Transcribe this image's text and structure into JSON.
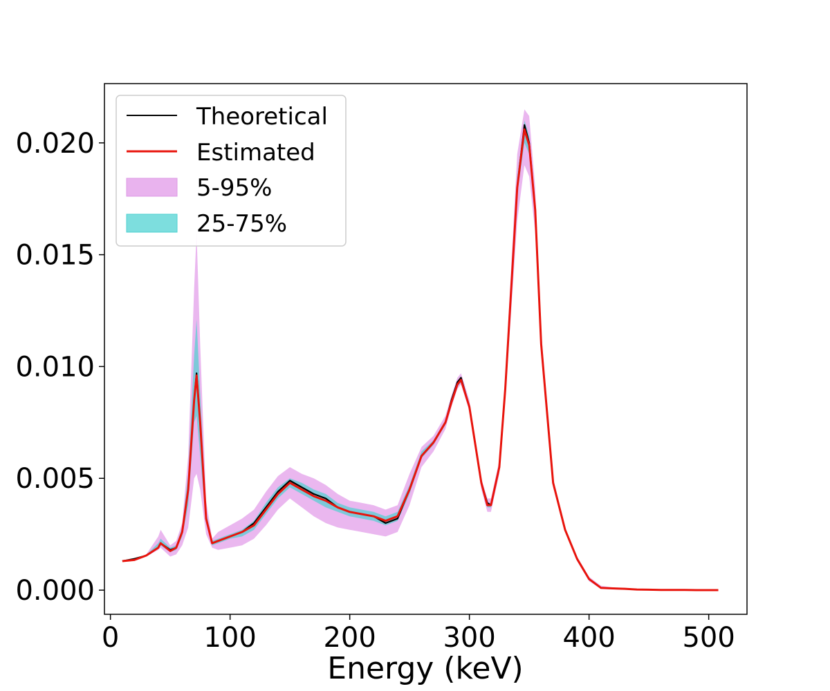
{
  "chart_data": {
    "type": "line",
    "title": "",
    "xlabel": "Energy (keV)",
    "ylabel": "",
    "xlim": [
      -5,
      532
    ],
    "ylim": [
      -0.00108,
      0.02265
    ],
    "xticks": [
      0,
      100,
      200,
      300,
      400,
      500
    ],
    "xtick_labels": [
      "0",
      "100",
      "200",
      "300",
      "400",
      "500"
    ],
    "yticks": [
      0.0,
      0.005,
      0.01,
      0.015,
      0.02
    ],
    "ytick_labels": [
      "0.000",
      "0.005",
      "0.010",
      "0.015",
      "0.020"
    ],
    "grid": false,
    "legend_position": "top-left",
    "x": [
      10,
      20,
      30,
      40,
      42,
      50,
      55,
      60,
      65,
      70,
      72,
      75,
      80,
      85,
      90,
      100,
      110,
      120,
      130,
      140,
      150,
      160,
      170,
      180,
      190,
      200,
      210,
      220,
      230,
      240,
      250,
      260,
      270,
      280,
      285,
      290,
      293,
      300,
      310,
      315,
      318,
      325,
      330,
      340,
      346,
      350,
      355,
      360,
      370,
      380,
      390,
      400,
      410,
      420,
      430,
      440,
      450,
      460,
      470,
      480,
      490,
      500,
      508
    ],
    "series": [
      {
        "name": "Theoretical",
        "color": "#000000",
        "kind": "line",
        "values": [
          0.0013,
          0.0014,
          0.00155,
          0.0019,
          0.0021,
          0.0018,
          0.0019,
          0.0026,
          0.0045,
          0.0085,
          0.0097,
          0.0075,
          0.0032,
          0.0021,
          0.0022,
          0.0024,
          0.0026,
          0.003,
          0.0037,
          0.0044,
          0.0049,
          0.0046,
          0.0043,
          0.0041,
          0.0037,
          0.0035,
          0.0034,
          0.0033,
          0.003,
          0.0032,
          0.0045,
          0.006,
          0.0066,
          0.0075,
          0.0085,
          0.0093,
          0.0095,
          0.0082,
          0.0048,
          0.0039,
          0.0038,
          0.0055,
          0.009,
          0.018,
          0.0208,
          0.02,
          0.017,
          0.011,
          0.0048,
          0.0027,
          0.0014,
          0.0005,
          0.0001,
          8e-05,
          6e-05,
          3e-05,
          2e-05,
          1e-05,
          1e-05,
          1e-05,
          0.0,
          0.0,
          0.0
        ]
      },
      {
        "name": "Estimated",
        "color": "#e8140c",
        "kind": "line",
        "values": [
          0.0013,
          0.00135,
          0.00155,
          0.0019,
          0.0021,
          0.00175,
          0.0019,
          0.0026,
          0.0045,
          0.0085,
          0.0096,
          0.0075,
          0.0032,
          0.0021,
          0.0022,
          0.0024,
          0.0026,
          0.0029,
          0.0036,
          0.0043,
          0.0048,
          0.0045,
          0.0042,
          0.004,
          0.0037,
          0.0035,
          0.0034,
          0.0033,
          0.0031,
          0.0033,
          0.0045,
          0.006,
          0.0066,
          0.0075,
          0.0084,
          0.0092,
          0.0094,
          0.0082,
          0.0048,
          0.0038,
          0.0038,
          0.0055,
          0.009,
          0.018,
          0.0206,
          0.0199,
          0.017,
          0.011,
          0.0048,
          0.0027,
          0.0014,
          0.0005,
          0.0001,
          8e-05,
          6e-05,
          3e-05,
          2e-05,
          1e-05,
          1e-05,
          1e-05,
          0.0,
          0.0,
          0.0
        ]
      },
      {
        "name": "5-95%",
        "color": "#e9b3ee",
        "kind": "band",
        "lower": [
          0.0013,
          0.0013,
          0.0015,
          0.0018,
          0.0019,
          0.0015,
          0.0016,
          0.002,
          0.0028,
          0.005,
          0.0052,
          0.0045,
          0.0025,
          0.0019,
          0.0018,
          0.0019,
          0.002,
          0.0023,
          0.0029,
          0.0036,
          0.0041,
          0.0037,
          0.0033,
          0.003,
          0.0028,
          0.0027,
          0.0026,
          0.0025,
          0.0024,
          0.0026,
          0.0038,
          0.0055,
          0.0062,
          0.0072,
          0.0082,
          0.009,
          0.0092,
          0.008,
          0.0045,
          0.0035,
          0.0035,
          0.0052,
          0.0085,
          0.0165,
          0.019,
          0.0185,
          0.016,
          0.0105,
          0.0046,
          0.0026,
          0.0013,
          0.0004,
          5e-05,
          3e-05,
          2e-05,
          1e-05,
          0.0,
          0.0,
          0.0,
          0.0,
          0.0,
          0.0,
          0.0
        ],
        "upper": [
          0.0013,
          0.0014,
          0.0016,
          0.0024,
          0.0027,
          0.002,
          0.0022,
          0.003,
          0.006,
          0.0135,
          0.016,
          0.011,
          0.004,
          0.0023,
          0.0026,
          0.0029,
          0.0032,
          0.0036,
          0.0044,
          0.0051,
          0.0055,
          0.0052,
          0.005,
          0.0047,
          0.0043,
          0.004,
          0.0039,
          0.0038,
          0.0036,
          0.0038,
          0.0052,
          0.0064,
          0.0069,
          0.0078,
          0.0087,
          0.0095,
          0.0097,
          0.0085,
          0.005,
          0.0041,
          0.0041,
          0.0058,
          0.0095,
          0.0195,
          0.0215,
          0.0212,
          0.018,
          0.0116,
          0.005,
          0.0028,
          0.0015,
          0.0006,
          0.0002,
          0.00012,
          0.0001,
          6e-05,
          4e-05,
          3e-05,
          2e-05,
          2e-05,
          1e-05,
          1e-05,
          0.0
        ]
      },
      {
        "name": "25-75%",
        "color": "#4fd0d0",
        "kind": "band",
        "lower": [
          0.0013,
          0.00135,
          0.00152,
          0.0019,
          0.002,
          0.0017,
          0.0018,
          0.0024,
          0.0038,
          0.0075,
          0.0078,
          0.006,
          0.003,
          0.002,
          0.0021,
          0.0023,
          0.0024,
          0.0027,
          0.0034,
          0.0041,
          0.0046,
          0.0043,
          0.004,
          0.0037,
          0.0035,
          0.0033,
          0.0032,
          0.0031,
          0.0029,
          0.0031,
          0.0043,
          0.0059,
          0.0065,
          0.0074,
          0.0083,
          0.0091,
          0.0093,
          0.0081,
          0.0047,
          0.0037,
          0.0037,
          0.0054,
          0.0088,
          0.0177,
          0.02,
          0.0195,
          0.0167,
          0.0109,
          0.0047,
          0.0027,
          0.0014,
          0.0005,
          8e-05,
          6e-05,
          4e-05,
          2e-05,
          1e-05,
          1e-05,
          0.0,
          0.0,
          0.0,
          0.0,
          0.0
        ],
        "upper": [
          0.0013,
          0.0014,
          0.00158,
          0.0021,
          0.0023,
          0.0019,
          0.002,
          0.0028,
          0.0052,
          0.0105,
          0.0121,
          0.0088,
          0.0035,
          0.0022,
          0.0023,
          0.0025,
          0.0027,
          0.0031,
          0.0039,
          0.0046,
          0.005,
          0.0048,
          0.0045,
          0.0043,
          0.0039,
          0.0037,
          0.0036,
          0.0035,
          0.0033,
          0.0035,
          0.0047,
          0.0062,
          0.0067,
          0.0076,
          0.0085,
          0.0093,
          0.0095,
          0.0083,
          0.0049,
          0.0039,
          0.0039,
          0.0056,
          0.0092,
          0.0185,
          0.021,
          0.0203,
          0.0173,
          0.0112,
          0.0049,
          0.0028,
          0.0014,
          0.0005,
          0.00012,
          0.0001,
          7e-05,
          4e-05,
          3e-05,
          2e-05,
          1e-05,
          1e-05,
          1e-05,
          0.0,
          0.0
        ]
      }
    ]
  }
}
